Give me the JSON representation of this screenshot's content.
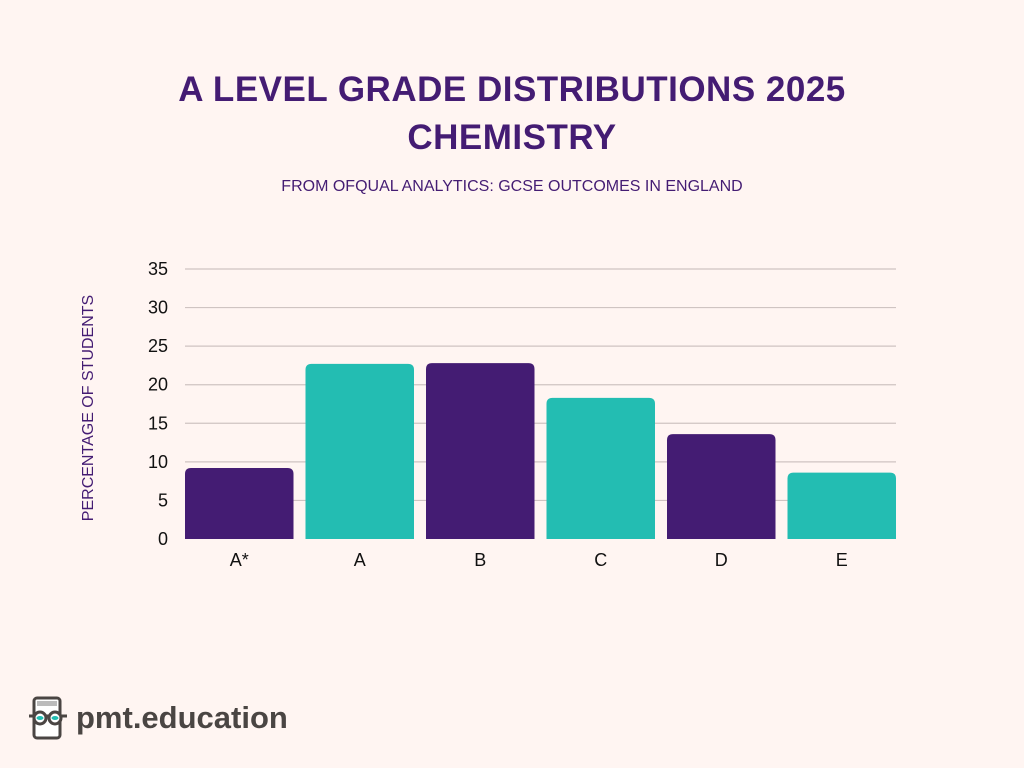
{
  "chart_data": {
    "type": "bar",
    "title": "A LEVEL GRADE DISTRIBUTIONS 2025",
    "title_line2": "CHEMISTRY",
    "subtitle": "FROM OFQUAL ANALYTICS: GCSE OUTCOMES IN ENGLAND",
    "xlabel": "",
    "ylabel": "PERCENTAGE OF STUDENTS",
    "categories": [
      "A*",
      "A",
      "B",
      "C",
      "D",
      "E"
    ],
    "values": [
      9.2,
      22.7,
      22.8,
      18.3,
      13.6,
      8.6
    ],
    "bar_colors": [
      "#441c73",
      "#23bdb2",
      "#441c73",
      "#23bdb2",
      "#441c73",
      "#23bdb2"
    ],
    "ylim": [
      0,
      35
    ],
    "yticks": [
      0,
      5,
      10,
      15,
      20,
      25,
      30,
      35
    ],
    "grid": true,
    "legend": "none"
  },
  "logo": {
    "text": "pmt.education"
  }
}
